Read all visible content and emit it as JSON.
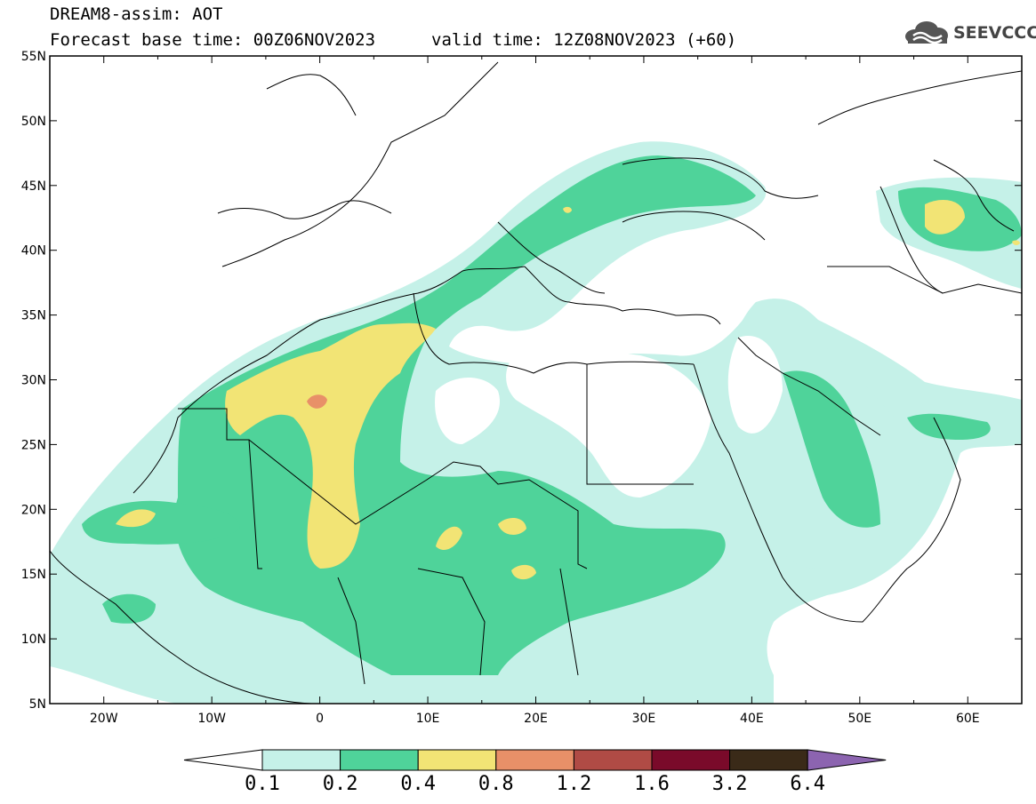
{
  "title": {
    "line1": "DREAM8-assim: AOT",
    "line2": "Forecast base time: 00Z06NOV2023",
    "valid": "valid time: 12Z08NOV2023 (+60)"
  },
  "logo": {
    "text": "SEEVCCC",
    "icon": "cloud-icon"
  },
  "map": {
    "lat_labels": [
      "55N",
      "50N",
      "45N",
      "40N",
      "35N",
      "30N",
      "25N",
      "20N",
      "15N",
      "10N",
      "5N"
    ],
    "lon_labels": [
      "20W",
      "10W",
      "0",
      "10E",
      "20E",
      "30E",
      "40E",
      "50E",
      "60E"
    ],
    "lon_range": [
      -25,
      65
    ],
    "lat_range": [
      5,
      55
    ]
  },
  "colorbar": {
    "labels": [
      "0.1",
      "0.2",
      "0.4",
      "0.8",
      "1.2",
      "1.6",
      "3.2",
      "6.4"
    ],
    "colors": [
      "#c5f1e8",
      "#4fd39a",
      "#f2e475",
      "#e89068",
      "#b04b45",
      "#7a0a2a",
      "#3a2a18",
      "#8c64b0"
    ],
    "under_color": "#ffffff"
  }
}
